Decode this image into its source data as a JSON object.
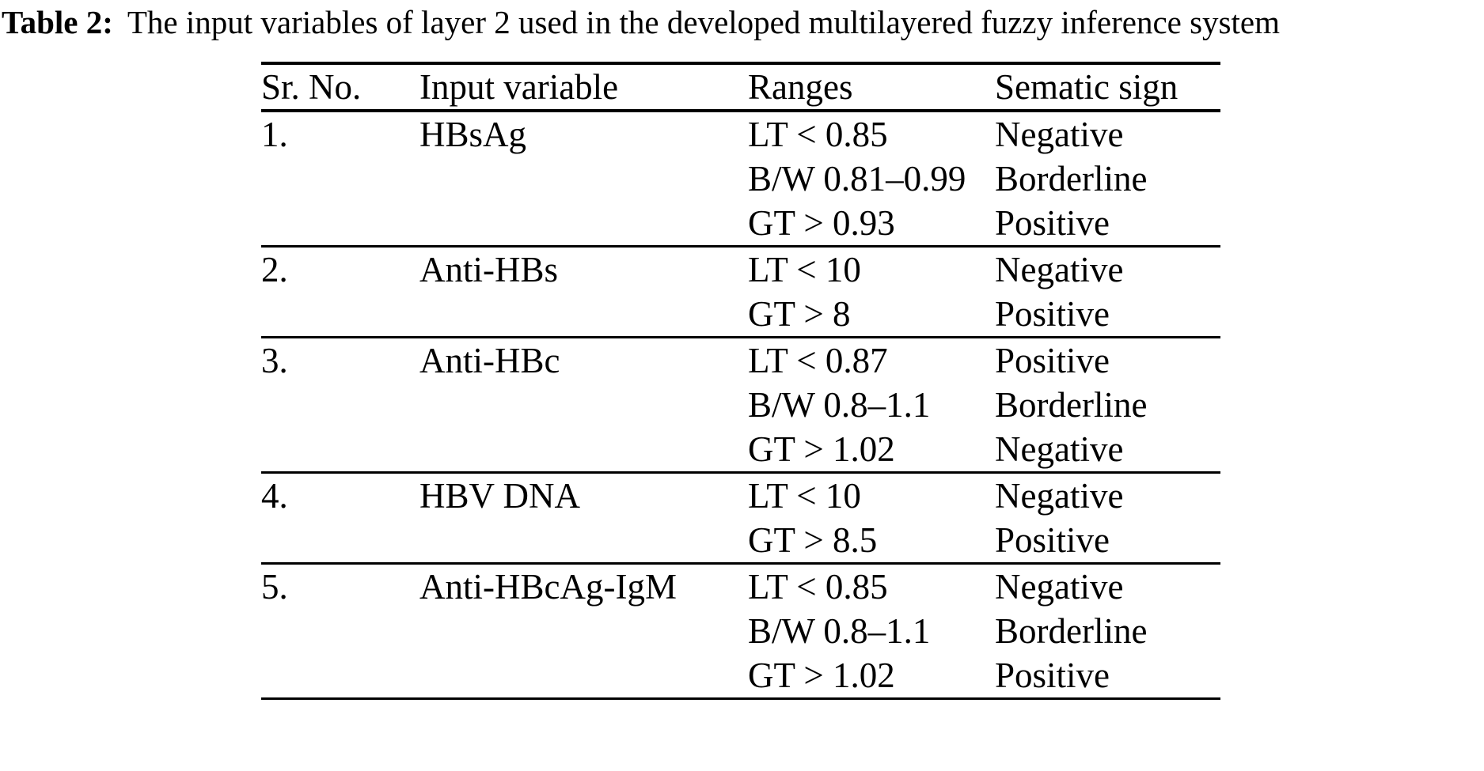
{
  "caption": {
    "label": "Table 2:",
    "text": "The input variables of layer 2 used in the developed multilayered fuzzy inference system"
  },
  "table": {
    "columns": [
      "Sr. No.",
      "Input variable",
      "Ranges",
      "Sematic sign"
    ],
    "rows": [
      {
        "sr_no": "1.",
        "input_variable": "HBsAg",
        "ranges": [
          "LT < 0.85",
          "B/W 0.81–0.99",
          "GT > 0.93"
        ],
        "sematic_signs": [
          "Negative",
          "Borderline",
          "Positive"
        ]
      },
      {
        "sr_no": "2.",
        "input_variable": "Anti-HBs",
        "ranges": [
          "LT < 10",
          "GT > 8"
        ],
        "sematic_signs": [
          "Negative",
          "Positive"
        ]
      },
      {
        "sr_no": "3.",
        "input_variable": "Anti-HBc",
        "ranges": [
          "LT < 0.87",
          "B/W 0.8–1.1",
          "GT > 1.02"
        ],
        "sematic_signs": [
          "Positive",
          "Borderline",
          "Negative"
        ]
      },
      {
        "sr_no": "4.",
        "input_variable": "HBV DNA",
        "ranges": [
          "LT < 10",
          "GT > 8.5"
        ],
        "sematic_signs": [
          "Negative",
          "Positive"
        ]
      },
      {
        "sr_no": "5.",
        "input_variable": "Anti-HBcAg-IgM",
        "ranges": [
          "LT < 0.85",
          "B/W 0.8–1.1",
          "GT > 1.02"
        ],
        "sematic_signs": [
          "Negative",
          "Borderline",
          "Positive"
        ]
      }
    ]
  },
  "colors": {
    "text": "#000000",
    "background": "#ffffff",
    "rule": "#000000"
  }
}
